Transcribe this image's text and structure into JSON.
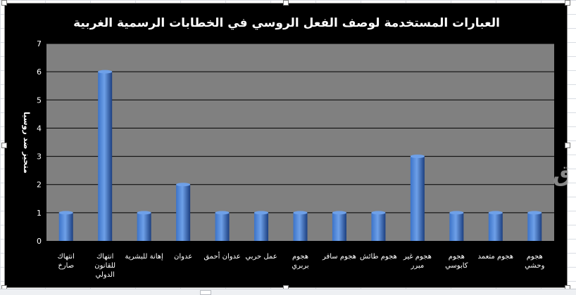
{
  "chart_data": {
    "type": "bar",
    "title": "العبارات المستخدمة لوصف الفعل الروسي في الخطابات الرسمية الغربية",
    "ylabel": "متحيز ضد روسيا",
    "xlabel": "",
    "ylim": [
      0,
      7
    ],
    "yticks": [
      0,
      1,
      2,
      3,
      4,
      5,
      6,
      7
    ],
    "grid": true,
    "legend": "none",
    "categories": [
      [
        "انتهاك",
        "صارخ"
      ],
      [
        "انتهاك",
        "للقانون",
        "الدولي"
      ],
      [
        "إهانة للبشرية"
      ],
      [
        "عدوان"
      ],
      [
        "عدوان أحمق"
      ],
      [
        "عمل حربي"
      ],
      [
        "هجوم",
        "بربري"
      ],
      [
        "هجوم سافر"
      ],
      [
        "هجوم طائش"
      ],
      [
        "هجوم غير",
        "مبرر"
      ],
      [
        "هجوم",
        "كابوسي"
      ],
      [
        "هجوم متعمد"
      ],
      [
        "هجوم",
        "وحشي"
      ]
    ],
    "values": [
      1,
      6,
      1,
      2,
      1,
      1,
      1,
      1,
      1,
      3,
      1,
      1,
      1
    ],
    "colors": {
      "background": "#000000",
      "plot_area": "#808080",
      "gridline": "#000000",
      "bar_light": "#6ea0e8",
      "bar_mid": "#3c73c8",
      "bar_dark": "#1c3f80",
      "text": "#ffffff"
    }
  },
  "watermark": "الشروق"
}
